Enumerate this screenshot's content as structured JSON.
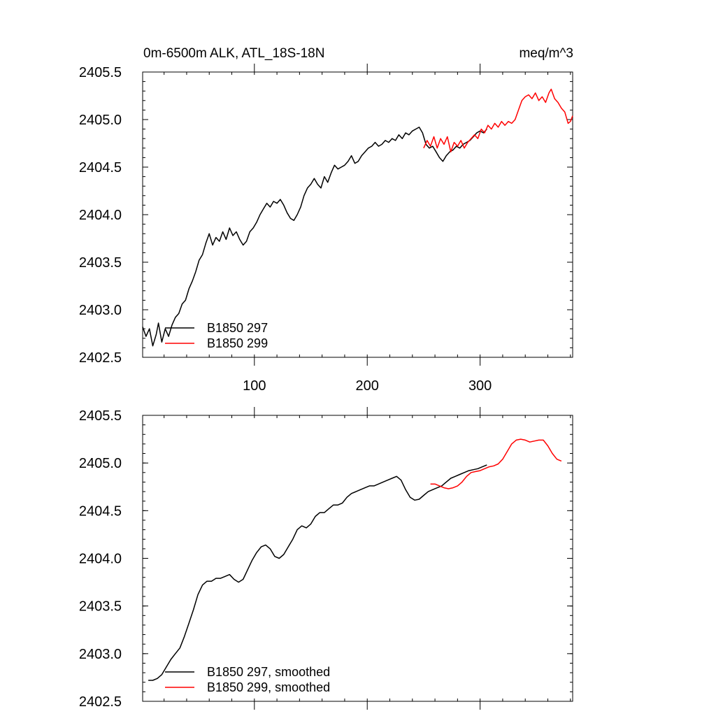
{
  "title_left": "0m-6500m ALK, ATL_18S-18N",
  "title_right": "meq/m^3",
  "chart_data": [
    {
      "type": "line",
      "xlim": [
        1,
        382
      ],
      "ylim": [
        2402.5,
        2405.5
      ],
      "yticks": [
        2402.5,
        2403.0,
        2403.5,
        2404.0,
        2404.5,
        2405.0,
        2405.5
      ],
      "ytick_labels": [
        "2402.5",
        "2403.0",
        "2403.5",
        "2404.0",
        "2404.5",
        "2405.0",
        "2405.5"
      ],
      "xticks": [
        100,
        200,
        300
      ],
      "xtick_labels": [
        "100",
        "200",
        "300"
      ],
      "grid": false,
      "legend_position": "bottom-left",
      "series": [
        {
          "name": "B1850 297",
          "color": "#000000",
          "points": [
            [
              1,
              2402.82
            ],
            [
              4,
              2402.72
            ],
            [
              7,
              2402.8
            ],
            [
              10,
              2402.62
            ],
            [
              13,
              2402.74
            ],
            [
              15,
              2402.86
            ],
            [
              18,
              2402.66
            ],
            [
              21,
              2402.8
            ],
            [
              24,
              2402.72
            ],
            [
              27,
              2402.84
            ],
            [
              30,
              2402.92
            ],
            [
              33,
              2402.96
            ],
            [
              36,
              2403.06
            ],
            [
              39,
              2403.1
            ],
            [
              42,
              2403.22
            ],
            [
              45,
              2403.3
            ],
            [
              48,
              2403.4
            ],
            [
              51,
              2403.52
            ],
            [
              54,
              2403.58
            ],
            [
              57,
              2403.7
            ],
            [
              60,
              2403.8
            ],
            [
              63,
              2403.68
            ],
            [
              66,
              2403.76
            ],
            [
              69,
              2403.72
            ],
            [
              72,
              2403.82
            ],
            [
              75,
              2403.74
            ],
            [
              78,
              2403.86
            ],
            [
              81,
              2403.78
            ],
            [
              84,
              2403.82
            ],
            [
              87,
              2403.74
            ],
            [
              90,
              2403.68
            ],
            [
              93,
              2403.72
            ],
            [
              96,
              2403.82
            ],
            [
              99,
              2403.86
            ],
            [
              102,
              2403.92
            ],
            [
              105,
              2404.0
            ],
            [
              108,
              2404.06
            ],
            [
              111,
              2404.12
            ],
            [
              114,
              2404.08
            ],
            [
              117,
              2404.14
            ],
            [
              120,
              2404.12
            ],
            [
              123,
              2404.16
            ],
            [
              126,
              2404.1
            ],
            [
              129,
              2404.02
            ],
            [
              132,
              2403.96
            ],
            [
              135,
              2403.94
            ],
            [
              138,
              2404.0
            ],
            [
              141,
              2404.08
            ],
            [
              144,
              2404.2
            ],
            [
              147,
              2404.28
            ],
            [
              150,
              2404.32
            ],
            [
              153,
              2404.38
            ],
            [
              156,
              2404.32
            ],
            [
              159,
              2404.28
            ],
            [
              162,
              2404.4
            ],
            [
              165,
              2404.34
            ],
            [
              168,
              2404.44
            ],
            [
              171,
              2404.52
            ],
            [
              174,
              2404.48
            ],
            [
              177,
              2404.5
            ],
            [
              180,
              2404.52
            ],
            [
              183,
              2404.56
            ],
            [
              186,
              2404.62
            ],
            [
              189,
              2404.54
            ],
            [
              192,
              2404.56
            ],
            [
              195,
              2404.62
            ],
            [
              198,
              2404.66
            ],
            [
              201,
              2404.7
            ],
            [
              204,
              2404.72
            ],
            [
              207,
              2404.76
            ],
            [
              210,
              2404.72
            ],
            [
              213,
              2404.74
            ],
            [
              216,
              2404.78
            ],
            [
              219,
              2404.76
            ],
            [
              222,
              2404.8
            ],
            [
              225,
              2404.78
            ],
            [
              228,
              2404.84
            ],
            [
              231,
              2404.8
            ],
            [
              234,
              2404.86
            ],
            [
              237,
              2404.84
            ],
            [
              240,
              2404.88
            ],
            [
              243,
              2404.9
            ],
            [
              246,
              2404.92
            ],
            [
              249,
              2404.86
            ],
            [
              252,
              2404.74
            ],
            [
              255,
              2404.7
            ],
            [
              258,
              2404.72
            ],
            [
              261,
              2404.66
            ],
            [
              264,
              2404.6
            ],
            [
              267,
              2404.56
            ],
            [
              270,
              2404.62
            ],
            [
              273,
              2404.66
            ],
            [
              276,
              2404.68
            ],
            [
              279,
              2404.72
            ],
            [
              282,
              2404.7
            ],
            [
              285,
              2404.74
            ],
            [
              288,
              2404.76
            ],
            [
              291,
              2404.78
            ],
            [
              294,
              2404.82
            ],
            [
              297,
              2404.86
            ],
            [
              300,
              2404.88
            ],
            [
              303,
              2404.86
            ],
            [
              306,
              2404.9
            ]
          ]
        },
        {
          "name": "B1850 299",
          "color": "#ff0000",
          "points": [
            [
              250,
              2404.7
            ],
            [
              253,
              2404.78
            ],
            [
              256,
              2404.72
            ],
            [
              259,
              2404.82
            ],
            [
              262,
              2404.7
            ],
            [
              265,
              2404.8
            ],
            [
              268,
              2404.74
            ],
            [
              271,
              2404.82
            ],
            [
              274,
              2404.66
            ],
            [
              277,
              2404.76
            ],
            [
              280,
              2404.72
            ],
            [
              283,
              2404.78
            ],
            [
              286,
              2404.7
            ],
            [
              289,
              2404.76
            ],
            [
              292,
              2404.8
            ],
            [
              295,
              2404.84
            ],
            [
              298,
              2404.8
            ],
            [
              301,
              2404.9
            ],
            [
              304,
              2404.86
            ],
            [
              307,
              2404.94
            ],
            [
              310,
              2404.9
            ],
            [
              313,
              2404.96
            ],
            [
              316,
              2404.92
            ],
            [
              319,
              2404.98
            ],
            [
              322,
              2404.94
            ],
            [
              325,
              2404.98
            ],
            [
              328,
              2404.96
            ],
            [
              331,
              2405.0
            ],
            [
              334,
              2405.1
            ],
            [
              337,
              2405.2
            ],
            [
              340,
              2405.24
            ],
            [
              343,
              2405.26
            ],
            [
              346,
              2405.22
            ],
            [
              349,
              2405.28
            ],
            [
              352,
              2405.2
            ],
            [
              355,
              2405.24
            ],
            [
              358,
              2405.18
            ],
            [
              361,
              2405.28
            ],
            [
              363,
              2405.32
            ],
            [
              366,
              2405.22
            ],
            [
              369,
              2405.18
            ],
            [
              372,
              2405.12
            ],
            [
              375,
              2405.08
            ],
            [
              378,
              2404.96
            ],
            [
              380,
              2404.98
            ],
            [
              382,
              2405.04
            ]
          ]
        }
      ]
    },
    {
      "type": "line",
      "xlim": [
        1,
        382
      ],
      "ylim": [
        2402.5,
        2405.5
      ],
      "yticks": [
        2402.5,
        2403.0,
        2403.5,
        2404.0,
        2404.5,
        2405.0,
        2405.5
      ],
      "ytick_labels": [
        "2402.5",
        "2403.0",
        "2403.5",
        "2404.0",
        "2404.5",
        "2405.0",
        "2405.5"
      ],
      "xticks": [
        100,
        200,
        300
      ],
      "xtick_labels": [],
      "grid": false,
      "legend_position": "bottom-left",
      "series": [
        {
          "name": "B1850 297, smoothed",
          "color": "#000000",
          "points": [
            [
              6,
              2402.72
            ],
            [
              10,
              2402.72
            ],
            [
              14,
              2402.74
            ],
            [
              18,
              2402.78
            ],
            [
              22,
              2402.86
            ],
            [
              26,
              2402.94
            ],
            [
              30,
              2403.0
            ],
            [
              34,
              2403.06
            ],
            [
              38,
              2403.18
            ],
            [
              42,
              2403.32
            ],
            [
              46,
              2403.46
            ],
            [
              50,
              2403.62
            ],
            [
              54,
              2403.72
            ],
            [
              58,
              2403.76
            ],
            [
              62,
              2403.76
            ],
            [
              66,
              2403.79
            ],
            [
              70,
              2403.79
            ],
            [
              74,
              2403.81
            ],
            [
              78,
              2403.83
            ],
            [
              82,
              2403.78
            ],
            [
              86,
              2403.75
            ],
            [
              90,
              2403.78
            ],
            [
              94,
              2403.88
            ],
            [
              98,
              2403.98
            ],
            [
              102,
              2404.06
            ],
            [
              106,
              2404.12
            ],
            [
              110,
              2404.14
            ],
            [
              114,
              2404.1
            ],
            [
              118,
              2404.02
            ],
            [
              122,
              2404.0
            ],
            [
              126,
              2404.04
            ],
            [
              130,
              2404.12
            ],
            [
              134,
              2404.2
            ],
            [
              138,
              2404.3
            ],
            [
              142,
              2404.34
            ],
            [
              146,
              2404.32
            ],
            [
              150,
              2404.36
            ],
            [
              154,
              2404.44
            ],
            [
              158,
              2404.48
            ],
            [
              162,
              2404.48
            ],
            [
              166,
              2404.52
            ],
            [
              170,
              2404.56
            ],
            [
              174,
              2404.56
            ],
            [
              178,
              2404.58
            ],
            [
              182,
              2404.64
            ],
            [
              186,
              2404.68
            ],
            [
              190,
              2404.7
            ],
            [
              194,
              2404.72
            ],
            [
              198,
              2404.74
            ],
            [
              202,
              2404.76
            ],
            [
              206,
              2404.76
            ],
            [
              210,
              2404.78
            ],
            [
              214,
              2404.8
            ],
            [
              218,
              2404.82
            ],
            [
              222,
              2404.84
            ],
            [
              226,
              2404.86
            ],
            [
              230,
              2404.82
            ],
            [
              234,
              2404.72
            ],
            [
              238,
              2404.64
            ],
            [
              242,
              2404.61
            ],
            [
              246,
              2404.62
            ],
            [
              250,
              2404.66
            ],
            [
              254,
              2404.7
            ],
            [
              258,
              2404.72
            ],
            [
              262,
              2404.74
            ],
            [
              266,
              2404.76
            ],
            [
              270,
              2404.8
            ],
            [
              274,
              2404.84
            ],
            [
              278,
              2404.86
            ],
            [
              282,
              2404.88
            ],
            [
              286,
              2404.9
            ],
            [
              290,
              2404.92
            ],
            [
              294,
              2404.93
            ],
            [
              298,
              2404.94
            ],
            [
              302,
              2404.96
            ],
            [
              306,
              2404.98
            ]
          ]
        },
        {
          "name": "B1850 299, smoothed",
          "color": "#ff0000",
          "points": [
            [
              256,
              2404.78
            ],
            [
              260,
              2404.78
            ],
            [
              264,
              2404.76
            ],
            [
              268,
              2404.74
            ],
            [
              272,
              2404.73
            ],
            [
              276,
              2404.74
            ],
            [
              280,
              2404.76
            ],
            [
              284,
              2404.8
            ],
            [
              288,
              2404.86
            ],
            [
              292,
              2404.9
            ],
            [
              296,
              2404.91
            ],
            [
              300,
              2404.92
            ],
            [
              304,
              2404.94
            ],
            [
              308,
              2404.96
            ],
            [
              312,
              2404.97
            ],
            [
              316,
              2404.99
            ],
            [
              320,
              2405.04
            ],
            [
              324,
              2405.12
            ],
            [
              328,
              2405.2
            ],
            [
              332,
              2405.24
            ],
            [
              336,
              2405.25
            ],
            [
              340,
              2405.24
            ],
            [
              344,
              2405.22
            ],
            [
              348,
              2405.23
            ],
            [
              352,
              2405.24
            ],
            [
              356,
              2405.24
            ],
            [
              360,
              2405.18
            ],
            [
              364,
              2405.1
            ],
            [
              368,
              2405.04
            ],
            [
              372,
              2405.02
            ]
          ]
        }
      ]
    }
  ]
}
